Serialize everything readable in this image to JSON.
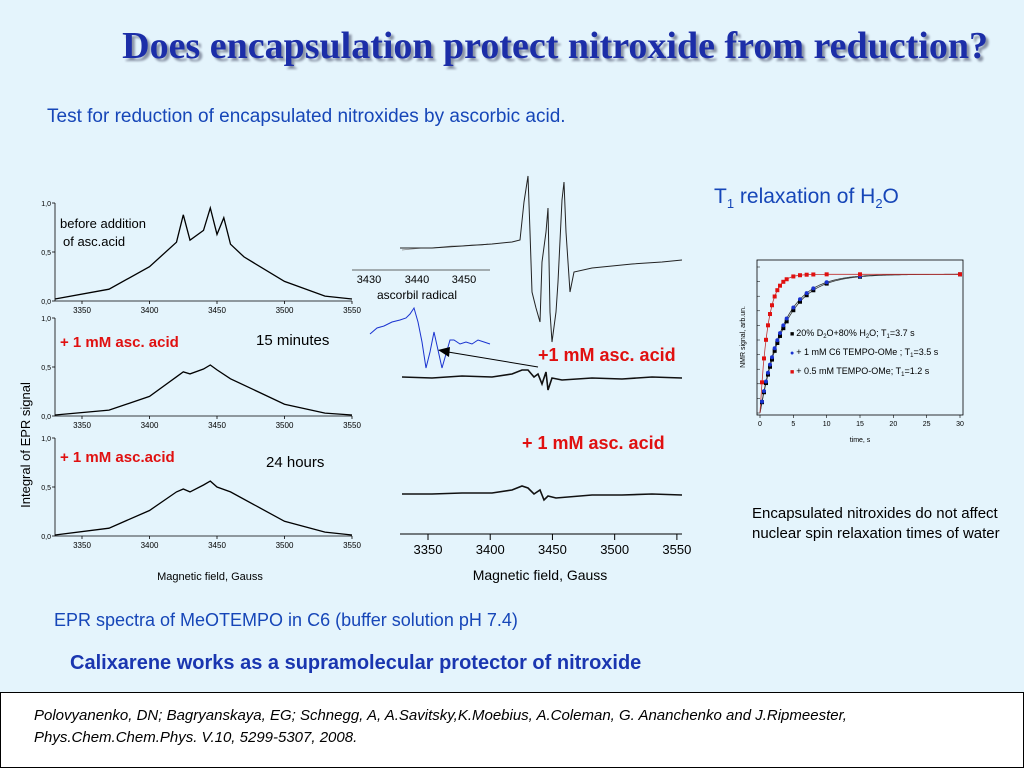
{
  "title": "Does encapsulation protect nitroxide from reduction?",
  "subtitle": "Test for reduction of encapsulated nitroxides by ascorbic acid.",
  "left_panel": {
    "ylabel": "Integral of EPR signal",
    "xlabel": "Magnetic field, Gauss",
    "panels": [
      {
        "label_line1": "before addition",
        "label_line2": " of  asc.acid",
        "time": ""
      },
      {
        "label": "+ 1 mM asc. acid",
        "time": "15 minutes"
      },
      {
        "label": "+ 1 mM asc.acid",
        "time": "24 hours"
      }
    ]
  },
  "middle_panel": {
    "inset_label": "ascorbil radical",
    "inset_ticks": [
      "3430",
      "3440",
      "3450"
    ],
    "label_top": "+1 mM asc. acid",
    "label_bottom": "+ 1 mM asc. acid",
    "xlabel": "Magnetic field, Gauss"
  },
  "right_panel": {
    "title_main": "T",
    "title_sub": "1",
    "title_rest": " relaxation of H",
    "title_sub2": "2",
    "title_end": "O",
    "note": "Encapsulated nitroxides do not affect nuclear spin  relaxation times of water"
  },
  "caption": "EPR spectra of MeOTEMPO in C6 (buffer solution pH 7.4)",
  "conclusion": "Calixarene works as a supramolecular protector of nitroxide",
  "reference": "Polovyanenko, DN; Bagryanskaya, EG; Schnegg, A, A.Savitsky,K.Moebius, A.Coleman, G. Ananchenko and J.Ripmeester, Phys.Chem.Chem.Phys. V.10, 5299-5307, 2008.",
  "chart_data": [
    {
      "type": "line",
      "description_panel": "left",
      "x_ticks": [
        "3350",
        "3400",
        "3450",
        "3500",
        "3550"
      ],
      "y_ticks": [
        "0,0",
        "0,5",
        "1,0"
      ],
      "xlim": [
        3330,
        3550
      ],
      "ylim": [
        0,
        1.0
      ],
      "series": [
        {
          "x": [
            3330,
            3370,
            3400,
            3420,
            3425,
            3430,
            3440,
            3445,
            3450,
            3455,
            3460,
            3470,
            3500,
            3530,
            3550
          ],
          "y": [
            0.02,
            0.12,
            0.35,
            0.6,
            0.88,
            0.62,
            0.72,
            0.95,
            0.68,
            0.85,
            0.58,
            0.45,
            0.2,
            0.05,
            0.02
          ]
        },
        {
          "x": [
            3330,
            3370,
            3400,
            3420,
            3425,
            3430,
            3440,
            3445,
            3450,
            3460,
            3480,
            3500,
            3530,
            3550
          ],
          "y": [
            0.01,
            0.06,
            0.2,
            0.4,
            0.45,
            0.43,
            0.48,
            0.52,
            0.47,
            0.38,
            0.25,
            0.12,
            0.03,
            0.01
          ]
        },
        {
          "x": [
            3330,
            3370,
            3400,
            3420,
            3425,
            3430,
            3440,
            3445,
            3450,
            3460,
            3480,
            3500,
            3530,
            3550
          ],
          "y": [
            0.01,
            0.08,
            0.26,
            0.45,
            0.48,
            0.45,
            0.52,
            0.56,
            0.5,
            0.45,
            0.3,
            0.15,
            0.04,
            0.01
          ]
        }
      ]
    },
    {
      "type": "line",
      "description_panel": "middle",
      "x_ticks": [
        "3350",
        "3400",
        "3450",
        "3500",
        "3550"
      ],
      "xlim": [
        3330,
        3550
      ]
    },
    {
      "type": "scatter",
      "description_panel": "right",
      "xlabel": "time, s",
      "ylabel": "NMR signal, arb.un.",
      "x_ticks": [
        "0",
        "5",
        "10",
        "15",
        "20",
        "25",
        "30"
      ],
      "xlim": [
        0,
        30
      ],
      "ylim": [
        0,
        1
      ],
      "legend": [
        {
          "marker": "■",
          "color": "#000000",
          "text": "20% D",
          "sub1": "2",
          "mid": "O+80% H",
          "sub2": "2",
          "mid2": "O;  T",
          "sub3": "1",
          "end": "=3.7 s",
          "T1": 3.7
        },
        {
          "marker": "●",
          "color": "#1a33d0",
          "text": "+ 1 mM C6 TEMPO-OMe ; T",
          "sub3": "1",
          "end": "=3.5 s",
          "T1": 3.5
        },
        {
          "marker": "■",
          "color": "#e01010",
          "text": "+ 0.5 mM TEMPO-OMe; T",
          "sub3": "1",
          "end": "=1.2 s",
          "T1": 1.2
        }
      ]
    }
  ]
}
